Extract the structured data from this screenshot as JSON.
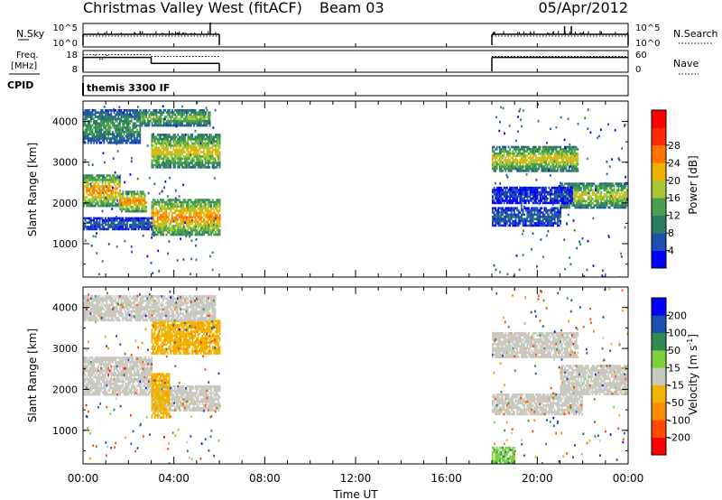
{
  "header": {
    "station": "Christmas Valley West (fitACF)",
    "beam": "Beam 03",
    "date": "05/Apr/2012"
  },
  "left_labels": {
    "nsky": "N.Sky",
    "freq_line1": "Freq.",
    "freq_line2": "[MHz]",
    "cpid": "CPID"
  },
  "right_labels": {
    "nsearch": "N.Search",
    "nave": "Nave"
  },
  "cpid_text": "themis 3300 IF",
  "chart_data": [
    {
      "type": "line",
      "panel": "noise",
      "ylabel_left": "N.Sky",
      "ylabel_right": "N.Search",
      "yticks_left": [
        "10^5",
        "10^0"
      ],
      "yticks_right": [
        "10^5",
        "10^0"
      ],
      "segments": [
        [
          0,
          6
        ],
        [
          18,
          24
        ]
      ]
    },
    {
      "type": "line",
      "panel": "frequency",
      "ylabel_left": "Freq. [MHz]",
      "ylabel_right": "Nave",
      "yticks_left": [
        "18",
        "8"
      ],
      "yticks_right": [
        "60",
        "0"
      ],
      "freq_steps": [
        [
          0,
          3,
          15
        ],
        [
          3,
          6,
          12
        ],
        [
          18,
          24,
          15
        ]
      ],
      "nave_steps": [
        [
          0,
          3,
          50
        ],
        [
          3,
          6,
          45
        ],
        [
          18,
          24,
          45
        ]
      ]
    },
    {
      "type": "heatmap",
      "panel": "power",
      "ylabel": "Slant Range [km]",
      "yticks": [
        "1000",
        "2000",
        "3000",
        "4000"
      ],
      "ylim": [
        180,
        4500
      ],
      "xlim": [
        0,
        24
      ],
      "colorbar": {
        "label": "Power [dB]",
        "ticks": [
          "4",
          "8",
          "12",
          "16",
          "20",
          "24",
          "28"
        ],
        "colors": [
          "#0000ff",
          "#1c4fb0",
          "#2e7b64",
          "#49a04c",
          "#a7c832",
          "#f0b000",
          "#ff7300",
          "#ff2a00",
          "#ff0000"
        ]
      },
      "echo_bands": [
        {
          "t0": 0,
          "t1": 1.6,
          "r0": 1950,
          "r1": 2700,
          "power": 26
        },
        {
          "t0": 1.6,
          "t1": 2.8,
          "r0": 1800,
          "r1": 2300,
          "power": 27
        },
        {
          "t0": 3.0,
          "t1": 6.0,
          "r0": 1200,
          "r1": 2100,
          "power": 26
        },
        {
          "t0": 3.0,
          "t1": 6.0,
          "r0": 2900,
          "r1": 3700,
          "power": 22
        },
        {
          "t0": 0,
          "t1": 2.5,
          "r0": 3500,
          "r1": 4300,
          "power": 14
        },
        {
          "t0": 2.5,
          "t1": 5.6,
          "r0": 3900,
          "r1": 4300,
          "power": 18
        },
        {
          "t0": 0,
          "t1": 3.0,
          "r0": 1350,
          "r1": 1650,
          "power": 9
        },
        {
          "t0": 18.0,
          "t1": 21.8,
          "r0": 2800,
          "r1": 3400,
          "power": 22
        },
        {
          "t0": 21.0,
          "t1": 24.0,
          "r0": 1900,
          "r1": 2500,
          "power": 21
        },
        {
          "t0": 18.0,
          "t1": 21.0,
          "r0": 1450,
          "r1": 1900,
          "power": 8
        },
        {
          "t0": 18.0,
          "t1": 21.5,
          "r0": 2000,
          "r1": 2400,
          "power": 6
        }
      ]
    },
    {
      "type": "heatmap",
      "panel": "velocity",
      "ylabel": "Slant Range [km]",
      "yticks": [
        "1000",
        "2000",
        "3000",
        "4000"
      ],
      "ylim": [
        180,
        4500
      ],
      "xlim": [
        0,
        24
      ],
      "colorbar": {
        "label": "Velocity [m s^-1]",
        "label_main": "Velocity [m s",
        "label_sup": "-1",
        "label_end": "]",
        "ticks": [
          "-200",
          "-100",
          "-50",
          "-15",
          "15",
          "50",
          "100",
          "200"
        ],
        "colors": [
          "#ff0000",
          "#ff4a00",
          "#ff8c00",
          "#f0b400",
          "#c8c8c0",
          "#7dd23c",
          "#2e8c50",
          "#1c4fb0",
          "#0000ff"
        ]
      },
      "echo_bands": [
        {
          "t0": 0,
          "t1": 3.0,
          "r0": 1900,
          "r1": 2800,
          "velocity": 0
        },
        {
          "t0": 3.0,
          "t1": 6.0,
          "r0": 1500,
          "r1": 2100,
          "velocity": 0
        },
        {
          "t0": 3.0,
          "t1": 3.8,
          "r0": 1300,
          "r1": 2400,
          "velocity": -40
        },
        {
          "t0": 3.0,
          "t1": 6.0,
          "r0": 2900,
          "r1": 3700,
          "velocity": -40
        },
        {
          "t0": 0,
          "t1": 5.8,
          "r0": 3700,
          "r1": 4300,
          "velocity": 0
        },
        {
          "t0": 18.0,
          "t1": 21.8,
          "r0": 2800,
          "r1": 3400,
          "velocity": 0
        },
        {
          "t0": 21.0,
          "t1": 24.0,
          "r0": 1900,
          "r1": 2600,
          "velocity": 0
        },
        {
          "t0": 18.0,
          "t1": 22.0,
          "r0": 1400,
          "r1": 1900,
          "velocity": 0
        },
        {
          "t0": 18.0,
          "t1": 19.0,
          "r0": 200,
          "r1": 600,
          "velocity": 40
        }
      ]
    }
  ],
  "xaxis": {
    "ticks": [
      "00:00",
      "04:00",
      "08:00",
      "12:00",
      "16:00",
      "20:00",
      "00:00"
    ],
    "label": "Time UT"
  }
}
